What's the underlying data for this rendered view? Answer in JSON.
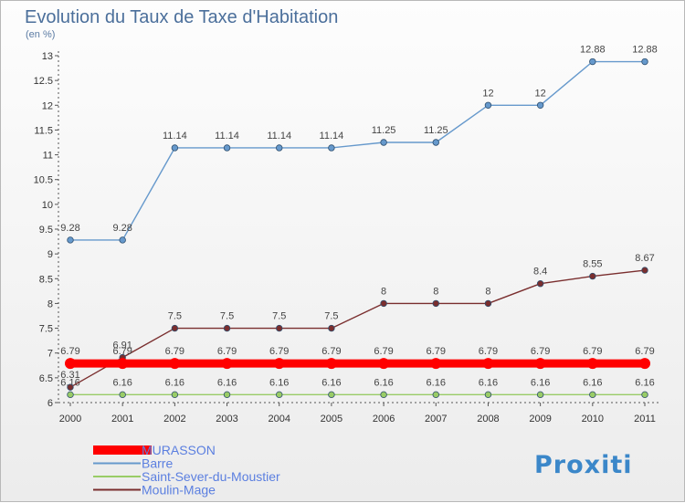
{
  "chart_data": {
    "type": "line",
    "title": "Evolution du Taux de Taxe d'Habitation",
    "ylabel": "(en %)",
    "x": [
      "2000",
      "2001",
      "2002",
      "2003",
      "2004",
      "2005",
      "2006",
      "2007",
      "2008",
      "2009",
      "2010",
      "2011"
    ],
    "ylim": [
      6,
      13
    ],
    "yticks": [
      "6",
      "6.5",
      "7",
      "7.5",
      "8",
      "8.5",
      "9",
      "9.5",
      "10",
      "10.5",
      "11",
      "11.5",
      "12",
      "12.5",
      "13"
    ],
    "grid": false,
    "legend": "bottom-left",
    "series": [
      {
        "name": "MURASSON",
        "color": "#ff0000",
        "values": [
          6.79,
          6.79,
          6.79,
          6.79,
          6.79,
          6.79,
          6.79,
          6.79,
          6.79,
          6.79,
          6.79,
          6.79
        ],
        "labels": [
          "6.79",
          "6.79",
          "6.79",
          "6.79",
          "6.79",
          "6.79",
          "6.79",
          "6.79",
          "6.79",
          "6.79",
          "6.79",
          "6.79"
        ]
      },
      {
        "name": "Barre",
        "color": "#6699cc",
        "values": [
          9.28,
          9.28,
          11.14,
          11.14,
          11.14,
          11.14,
          11.25,
          11.25,
          12,
          12,
          12.88,
          12.88
        ],
        "labels": [
          "9.28",
          "9.28",
          "11.14",
          "11.14",
          "11.14",
          "11.14",
          "11.25",
          "11.25",
          "12",
          "12",
          "12.88",
          "12.88"
        ]
      },
      {
        "name": "Saint-Sever-du-Moustier",
        "color": "#99cc66",
        "values": [
          6.16,
          6.16,
          6.16,
          6.16,
          6.16,
          6.16,
          6.16,
          6.16,
          6.16,
          6.16,
          6.16,
          6.16
        ],
        "labels": [
          "6.16",
          "6.16",
          "6.16",
          "6.16",
          "6.16",
          "6.16",
          "6.16",
          "6.16",
          "6.16",
          "6.16",
          "6.16",
          "6.16"
        ]
      },
      {
        "name": "Moulin-Mage",
        "color": "#7a2e2e",
        "values": [
          6.31,
          6.91,
          7.5,
          7.5,
          7.5,
          7.5,
          8,
          8,
          8,
          8.4,
          8.55,
          8.67
        ],
        "labels": [
          "6.31",
          "6.91",
          "7.5",
          "7.5",
          "7.5",
          "7.5",
          "8",
          "8",
          "8",
          "8.4",
          "8.55",
          "8.67"
        ]
      }
    ]
  },
  "logo": {
    "text": "Proxiti"
  },
  "colors": {
    "title": "#4b6f9b",
    "legend_text": "#5b7fe0"
  }
}
